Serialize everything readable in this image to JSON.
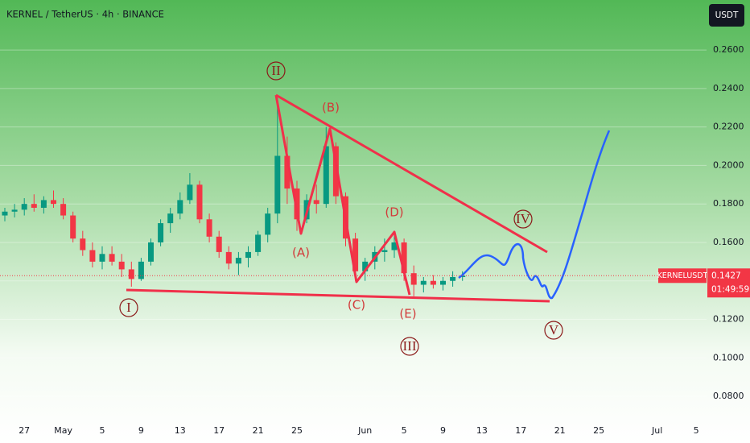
{
  "chart_data": {
    "type": "candlestick",
    "title": "KERNEL / TetherUS · 4h · BINANCE",
    "currency_button": "USDT",
    "symbol_tag": "KERNELUSDT",
    "last_price": 0.1427,
    "countdown": "01:49:59",
    "up_color": "#089981",
    "down_color": "#f23645",
    "categories": [
      null,
      null,
      "27",
      null,
      null,
      null,
      "May",
      null,
      null,
      null,
      "5",
      null,
      null,
      null,
      "9",
      null,
      null,
      null,
      "13",
      null,
      null,
      null,
      "17",
      null,
      null,
      null,
      "21",
      null,
      null,
      null,
      "25",
      null,
      null,
      null,
      null,
      null,
      null,
      "Jun",
      null,
      null,
      null,
      "5",
      null,
      null,
      null,
      "9",
      null,
      null,
      null,
      "13",
      null,
      null,
      null,
      "17",
      null,
      null,
      null,
      "21",
      null,
      null,
      null,
      "25",
      null,
      null,
      null,
      null,
      null,
      "Jul",
      null,
      null,
      null,
      "5",
      null
    ],
    "open": [
      0.174,
      0.176,
      0.177,
      0.18,
      0.178,
      0.182,
      0.18,
      0.174,
      0.162,
      0.156,
      0.15,
      0.154,
      0.15,
      0.146,
      0.141,
      0.15,
      0.16,
      0.17,
      0.175,
      0.182,
      0.19,
      0.172,
      0.163,
      0.155,
      0.149,
      0.152,
      0.155,
      0.164,
      0.175,
      0.205,
      0.188,
      0.172,
      0.182,
      0.18,
      0.21,
      0.184,
      0.162,
      0.145,
      0.15,
      0.155,
      0.156,
      0.16,
      0.144,
      0.138,
      0.14,
      0.138,
      0.14,
      0.142,
      null,
      null,
      null,
      null,
      null,
      null,
      null,
      null,
      null,
      null,
      null,
      null,
      null,
      null,
      null,
      null,
      null,
      null,
      null,
      null,
      null,
      null,
      null,
      null,
      null
    ],
    "high": [
      0.178,
      0.18,
      0.183,
      0.185,
      0.184,
      0.187,
      0.183,
      0.176,
      0.166,
      0.16,
      0.158,
      0.158,
      0.154,
      0.15,
      0.152,
      0.162,
      0.172,
      0.178,
      0.186,
      0.196,
      0.192,
      0.175,
      0.166,
      0.158,
      0.155,
      0.158,
      0.166,
      0.178,
      0.235,
      0.215,
      0.192,
      0.185,
      0.19,
      0.22,
      0.212,
      0.186,
      0.165,
      0.152,
      0.158,
      0.162,
      0.165,
      0.162,
      0.148,
      0.142,
      0.143,
      0.142,
      0.145,
      0.145,
      null,
      null,
      null,
      null,
      null,
      null,
      null,
      null,
      null,
      null,
      null,
      null,
      null,
      null,
      null,
      null,
      null,
      null,
      null,
      null,
      null,
      null,
      null,
      null,
      null
    ],
    "low": [
      0.171,
      0.173,
      0.174,
      0.176,
      0.175,
      0.178,
      0.172,
      0.16,
      0.153,
      0.147,
      0.146,
      0.148,
      0.142,
      0.137,
      0.14,
      0.148,
      0.158,
      0.165,
      0.172,
      0.18,
      0.17,
      0.16,
      0.152,
      0.146,
      0.143,
      0.147,
      0.153,
      0.16,
      0.17,
      0.18,
      0.166,
      0.17,
      0.175,
      0.178,
      0.18,
      0.158,
      0.14,
      0.14,
      0.146,
      0.15,
      0.152,
      0.14,
      0.132,
      0.134,
      0.136,
      0.135,
      0.137,
      0.14,
      null,
      null,
      null,
      null,
      null,
      null,
      null,
      null,
      null,
      null,
      null,
      null,
      null,
      null,
      null,
      null,
      null,
      null,
      null,
      null,
      null,
      null,
      null,
      null,
      null
    ],
    "close": [
      0.176,
      0.177,
      0.18,
      0.178,
      0.182,
      0.18,
      0.174,
      0.162,
      0.156,
      0.15,
      0.154,
      0.15,
      0.146,
      0.141,
      0.15,
      0.16,
      0.17,
      0.175,
      0.182,
      0.19,
      0.172,
      0.163,
      0.155,
      0.149,
      0.152,
      0.155,
      0.164,
      0.175,
      0.205,
      0.188,
      0.172,
      0.182,
      0.18,
      0.21,
      0.184,
      0.162,
      0.145,
      0.15,
      0.155,
      0.156,
      0.16,
      0.144,
      0.138,
      0.14,
      0.138,
      0.14,
      0.142,
      0.1427,
      null,
      null,
      null,
      null,
      null,
      null,
      null,
      null,
      null,
      null,
      null,
      null,
      null,
      null,
      null,
      null,
      null,
      null,
      null,
      null,
      null,
      null,
      null,
      null,
      null
    ],
    "ylim": [
      0.0683,
      0.286
    ],
    "yticks": [
      {
        "value": 0.08,
        "label": "0.0800"
      },
      {
        "value": 0.1,
        "label": "0.1000"
      },
      {
        "value": 0.12,
        "label": "0.1200"
      },
      {
        "value": 0.14,
        "label": "0.1400"
      },
      {
        "value": 0.16,
        "label": "0.1600"
      },
      {
        "value": 0.18,
        "label": "0.1800"
      },
      {
        "value": 0.2,
        "label": "0.2000"
      },
      {
        "value": 0.22,
        "label": "0.2200"
      },
      {
        "value": 0.24,
        "label": "0.2400"
      },
      {
        "value": 0.26,
        "label": "0.2600"
      }
    ],
    "grid": true,
    "annotations": {
      "wave_1": "I",
      "wave_2": "II",
      "wave_3": "III",
      "wave_4": "IV",
      "wave_5": "V",
      "a": "(A)",
      "b": "(B)",
      "c": "(C)",
      "d": "(D)",
      "e": "(E)"
    }
  }
}
